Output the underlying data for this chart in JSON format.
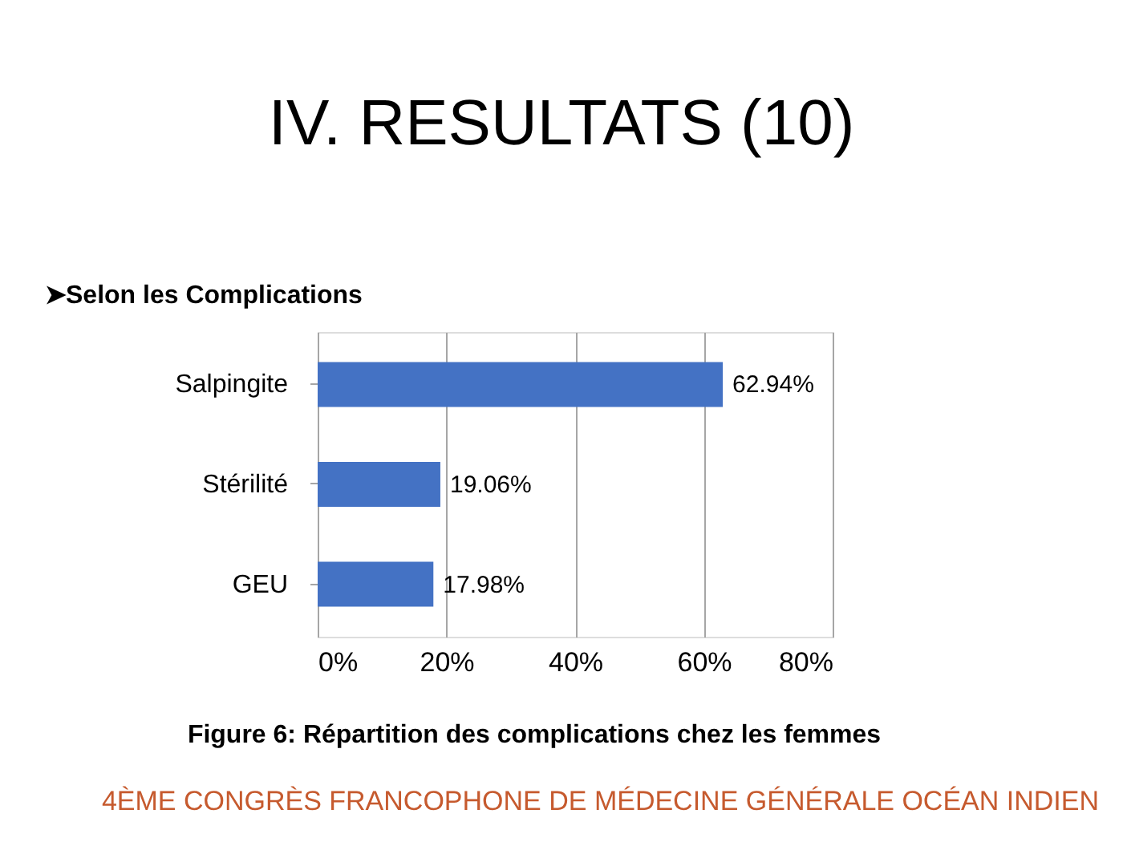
{
  "chart_data": {
    "type": "bar",
    "orientation": "horizontal",
    "title": "IV. RESULTATS (10)",
    "subtitle": "➤Selon les Complications",
    "categories": [
      "Salpingite",
      "Stérilité",
      "GEU"
    ],
    "values": [
      62.94,
      19.06,
      17.98
    ],
    "value_labels": [
      "62.94%",
      "19.06%",
      "17.98%"
    ],
    "color": "#4472c4",
    "xlim": [
      0,
      80
    ],
    "xticks": [
      {
        "value": 0,
        "label": "0%"
      },
      {
        "value": 20,
        "label": "20%"
      },
      {
        "value": 40,
        "label": "40%"
      },
      {
        "value": 60,
        "label": "60%"
      },
      {
        "value": 80,
        "label": "80%"
      }
    ],
    "grid": "x",
    "annotations": [
      "Figure 6: Répartition des complications chez les femmes",
      "4ÈME CONGRÈS FRANCOPHONE DE MÉDECINE GÉNÉRALE OCÉAN INDIEN"
    ]
  }
}
